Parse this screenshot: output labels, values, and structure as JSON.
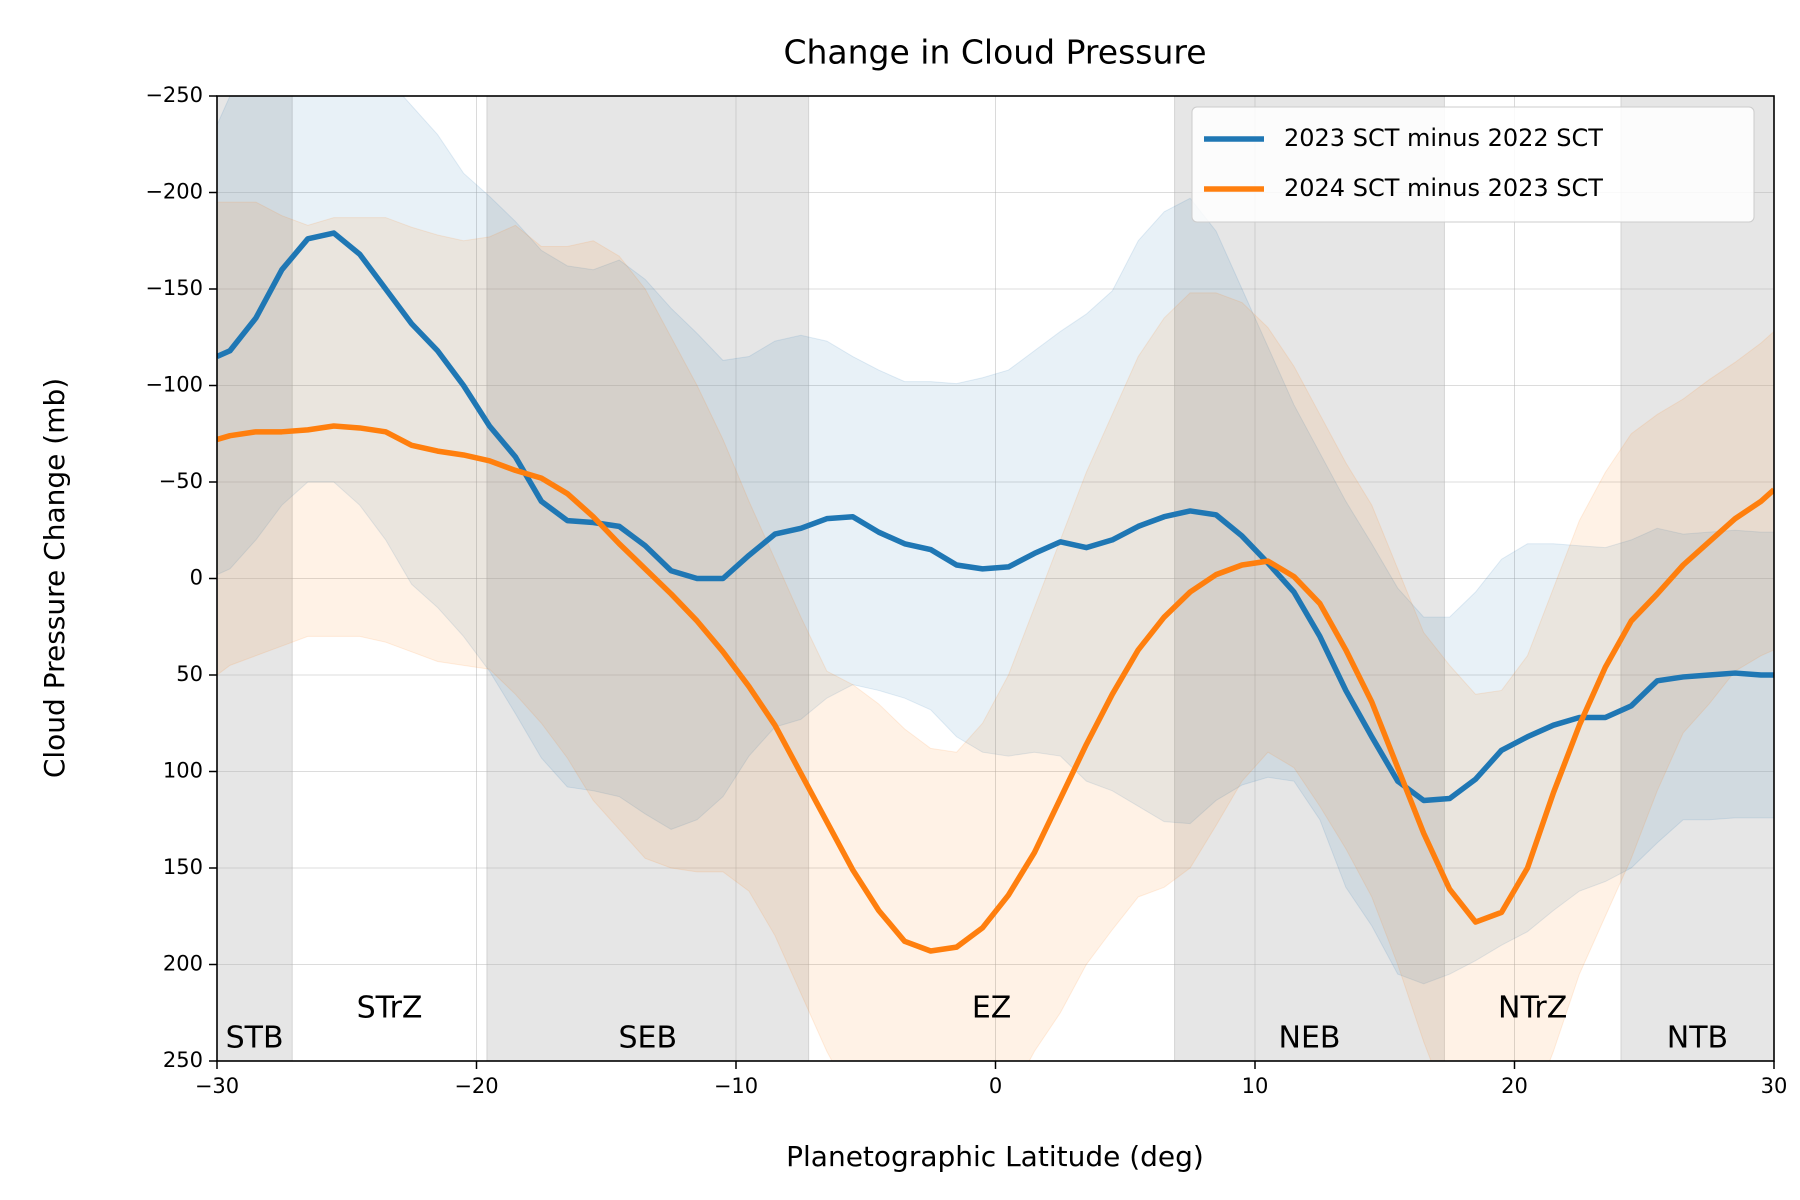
{
  "chart_data": {
    "type": "line",
    "title": "Change in Cloud Pressure",
    "xlabel": "Planetographic Latitude (deg)",
    "ylabel": "Cloud Pressure Change (mb)",
    "xlim": [
      -30,
      30
    ],
    "ylim": [
      -250,
      250
    ],
    "y_inverted": true,
    "xticks": [
      {
        "value": -30,
        "label": "−30"
      },
      {
        "value": -20,
        "label": "−20"
      },
      {
        "value": -10,
        "label": "−10"
      },
      0,
      10,
      20,
      30
    ],
    "yticks": [
      {
        "value": -250,
        "label": "−250"
      },
      {
        "value": -200,
        "label": "−200"
      },
      {
        "value": -150,
        "label": "−150"
      },
      {
        "value": -100,
        "label": "−100"
      },
      {
        "value": -50,
        "label": "−50"
      },
      0,
      50,
      100,
      150,
      200,
      250
    ],
    "grid": true,
    "legend": "upper right",
    "zones": [
      {
        "label": "STB",
        "range": [
          -30,
          -27.1
        ],
        "shaded": true
      },
      {
        "label": "STrZ",
        "range": [
          -27.1,
          -19.6
        ],
        "shaded": false
      },
      {
        "label": "SEB",
        "range": [
          -19.6,
          -7.2
        ],
        "shaded": true
      },
      {
        "label": "EZ",
        "range": [
          -7.2,
          6.9
        ],
        "shaded": false
      },
      {
        "label": "NEB",
        "range": [
          6.9,
          17.3
        ],
        "shaded": true
      },
      {
        "label": "NTrZ",
        "range": [
          17.3,
          24.1
        ],
        "shaded": false
      },
      {
        "label": "NTB",
        "range": [
          24.1,
          30
        ],
        "shaded": true
      }
    ],
    "x": [
      -30,
      -29.5,
      -28.5,
      -27.5,
      -26.5,
      -25.5,
      -24.5,
      -23.5,
      -22.5,
      -21.5,
      -20.5,
      -19.5,
      -18.5,
      -17.5,
      -16.5,
      -15.5,
      -14.5,
      -13.5,
      -12.5,
      -11.5,
      -10.5,
      -9.5,
      -8.5,
      -7.5,
      -6.5,
      -5.5,
      -4.5,
      -3.5,
      -2.5,
      -1.5,
      -0.5,
      0.5,
      1.5,
      2.5,
      3.5,
      4.5,
      5.5,
      6.5,
      7.5,
      8.5,
      9.5,
      10.5,
      11.5,
      12.5,
      13.5,
      14.5,
      15.5,
      16.5,
      17.5,
      18.5,
      19.5,
      20.5,
      21.5,
      22.5,
      23.5,
      24.5,
      25.5,
      26.5,
      27.5,
      28.5,
      29.5,
      30
    ],
    "series": [
      {
        "name": "2023 SCT minus 2022 SCT",
        "color": "#1f77b4",
        "values": [
          -115,
          -118,
          -135,
          -160,
          -176,
          -179,
          -168,
          -150,
          -132,
          -118,
          -100,
          -79,
          -63,
          -40,
          -30,
          -29,
          -27,
          -17,
          -4,
          0,
          0,
          -12,
          -23,
          -26,
          -31,
          -32,
          -24,
          -18,
          -15,
          -7,
          -5,
          -6,
          -13,
          -19,
          -16,
          -20,
          -27,
          -32,
          -35,
          -33,
          -22,
          -8,
          7,
          30,
          58,
          82,
          105,
          115,
          114,
          104,
          89,
          82,
          76,
          72,
          72,
          66,
          53,
          51,
          50,
          49,
          50,
          50
        ],
        "band_low": [
          -235,
          -250,
          -265,
          -275,
          -280,
          -280,
          -275,
          -260,
          -245,
          -230,
          -210,
          -198,
          -185,
          -170,
          -162,
          -160,
          -165,
          -155,
          -140,
          -127,
          -113,
          -115,
          -123,
          -126,
          -123,
          -115,
          -108,
          -102,
          -102,
          -101,
          -104,
          -108,
          -118,
          -128,
          -137,
          -149,
          -175,
          -190,
          -197,
          -180,
          -150,
          -120,
          -90,
          -65,
          -40,
          -18,
          5,
          20,
          20,
          7,
          -10,
          -18,
          -18,
          -17,
          -16,
          -20,
          -26,
          -23,
          -24,
          -25,
          -24,
          -24
        ],
        "band_high": [
          -2,
          -5,
          -20,
          -38,
          -50,
          -50,
          -38,
          -20,
          3,
          15,
          30,
          48,
          70,
          93,
          108,
          110,
          113,
          122,
          130,
          125,
          113,
          92,
          77,
          73,
          62,
          55,
          58,
          62,
          68,
          82,
          90,
          92,
          90,
          92,
          105,
          110,
          118,
          126,
          127,
          115,
          107,
          103,
          105,
          125,
          160,
          180,
          205,
          210,
          205,
          198,
          190,
          183,
          172,
          162,
          157,
          150,
          137,
          125,
          125,
          124,
          124,
          124
        ]
      },
      {
        "name": "2024 SCT minus 2023 SCT",
        "color": "#ff7f0e",
        "values": [
          -72,
          -74,
          -76,
          -76,
          -77,
          -79,
          -78,
          -76,
          -69,
          -66,
          -64,
          -61,
          -56,
          -52,
          -44,
          -32,
          -18,
          -5,
          8,
          22,
          38,
          56,
          76,
          101,
          126,
          151,
          172,
          188,
          193,
          191,
          181,
          164,
          142,
          114,
          86,
          60,
          37,
          20,
          7,
          -2,
          -7,
          -9,
          -1,
          13,
          37,
          64,
          98,
          132,
          161,
          178,
          173,
          150,
          111,
          76,
          46,
          22,
          8,
          -7,
          -19,
          -31,
          -40,
          -46
        ],
        "band_low": [
          -195,
          -195,
          -195,
          -188,
          -183,
          -187,
          -187,
          -187,
          -182,
          -178,
          -175,
          -177,
          -183,
          -172,
          -172,
          -175,
          -167,
          -150,
          -125,
          -100,
          -72,
          -40,
          -10,
          20,
          48,
          55,
          65,
          78,
          88,
          90,
          75,
          50,
          15,
          -20,
          -55,
          -85,
          -115,
          -135,
          -148,
          -148,
          -143,
          -130,
          -110,
          -85,
          -60,
          -38,
          -5,
          28,
          45,
          60,
          58,
          40,
          5,
          -30,
          -55,
          -75,
          -85,
          -93,
          -103,
          -112,
          -122,
          -128
        ],
        "band_high": [
          50,
          45,
          40,
          35,
          30,
          30,
          30,
          33,
          38,
          43,
          45,
          47,
          60,
          75,
          93,
          115,
          130,
          145,
          150,
          152,
          152,
          162,
          185,
          215,
          245,
          270,
          290,
          300,
          305,
          300,
          290,
          270,
          245,
          225,
          200,
          182,
          165,
          160,
          150,
          128,
          105,
          90,
          98,
          118,
          140,
          165,
          200,
          240,
          275,
          300,
          300,
          280,
          245,
          205,
          175,
          145,
          110,
          80,
          65,
          48,
          40,
          37
        ]
      }
    ]
  }
}
